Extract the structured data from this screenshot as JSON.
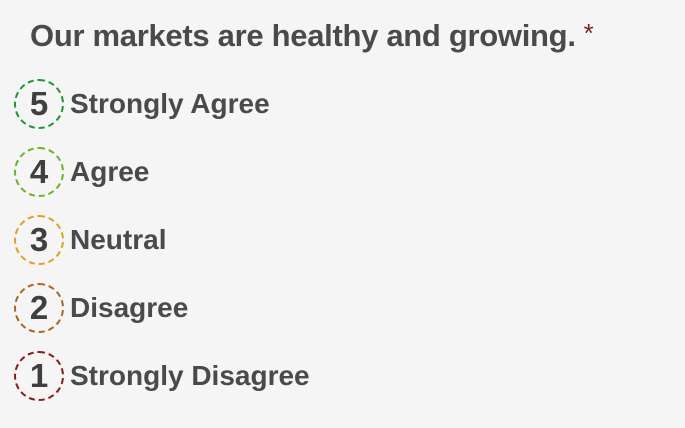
{
  "question": {
    "text": "Our markets are healthy and growing.",
    "required_marker": "*"
  },
  "options": [
    {
      "number": "5",
      "label": "Strongly Agree",
      "color": "#1a9a2a"
    },
    {
      "number": "4",
      "label": "Agree",
      "color": "#6bb51e"
    },
    {
      "number": "3",
      "label": "Neutral",
      "color": "#e0a020"
    },
    {
      "number": "2",
      "label": "Disagree",
      "color": "#b0661a"
    },
    {
      "number": "1",
      "label": "Strongly Disagree",
      "color": "#8b1a1a"
    }
  ]
}
